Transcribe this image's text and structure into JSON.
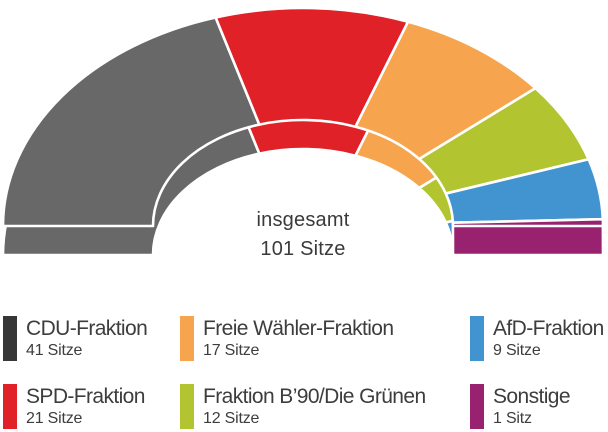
{
  "chart_data": {
    "type": "pie",
    "variant": "half-donut-3d",
    "title": "",
    "legend_position": "bottom",
    "total_seats": 101,
    "center_label": {
      "line1": "insgesamt",
      "line2": "101 Sitze"
    },
    "series": [
      {
        "label": "CDU-Fraktion",
        "value": 41,
        "seats_label": "41 Sitze",
        "color": "#686868",
        "legend_color": "#373737"
      },
      {
        "label": "SPD-Fraktion",
        "value": 21,
        "seats_label": "21 Sitze",
        "color": "#e02127",
        "legend_color": "#e02127"
      },
      {
        "label": "Freie Wähler-Fraktion",
        "value": 17,
        "seats_label": "17 Sitze",
        "color": "#f6a54e",
        "legend_color": "#f6a54e"
      },
      {
        "label": "Fraktion B’90/Die Grünen",
        "value": 12,
        "seats_label": "12 Sitze",
        "color": "#b3c431",
        "legend_color": "#b3c431"
      },
      {
        "label": "AfD-Fraktion",
        "value": 9,
        "seats_label": "9 Sitze",
        "color": "#4294d0",
        "legend_color": "#4294d0"
      },
      {
        "label": "Sonstige",
        "value": 1,
        "seats_label": "1 Sitz",
        "color": "#992270",
        "legend_color": "#992270"
      }
    ]
  }
}
